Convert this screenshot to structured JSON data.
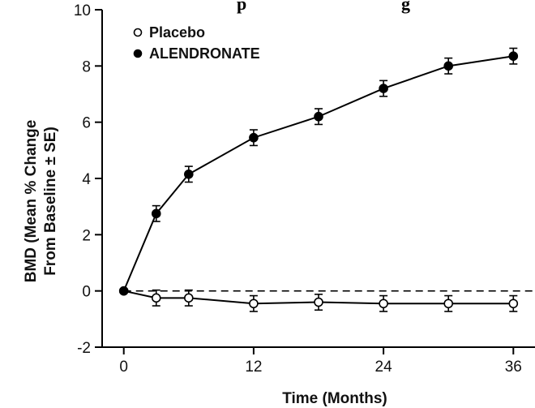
{
  "header": {
    "partial_title": "p",
    "partial_title_right": "g"
  },
  "chart_data": {
    "type": "line",
    "xlabel": "Time (Months)",
    "ylabel_line1": "BMD (Mean % Change",
    "ylabel_line2": "From Baseline ± SE)",
    "xlim": [
      -2,
      38
    ],
    "ylim": [
      -2,
      10
    ],
    "x_ticks": [
      0,
      12,
      24,
      36
    ],
    "y_ticks": [
      -2,
      0,
      2,
      4,
      6,
      8,
      10
    ],
    "x_tick_labels": [
      "0",
      "12",
      "24",
      "36"
    ],
    "y_tick_labels": [
      "-2",
      "0",
      "2",
      "4",
      "6",
      "8",
      "10"
    ],
    "reference_line": {
      "y": 0,
      "style": "dashed"
    },
    "legend": {
      "position": "top-left"
    },
    "series": [
      {
        "name": "Placebo",
        "marker": "open-circle",
        "color": "#000000",
        "x": [
          0,
          3,
          6,
          12,
          18,
          24,
          30,
          36
        ],
        "y": [
          0.0,
          -0.25,
          -0.25,
          -0.45,
          -0.4,
          -0.45,
          -0.45,
          -0.45
        ],
        "se": [
          0.0,
          0.28,
          0.28,
          0.28,
          0.28,
          0.28,
          0.28,
          0.28
        ]
      },
      {
        "name": "ALENDRONATE",
        "marker": "filled-circle",
        "color": "#000000",
        "x": [
          0,
          3,
          6,
          12,
          18,
          24,
          30,
          36
        ],
        "y": [
          0.0,
          2.75,
          4.15,
          5.45,
          6.2,
          7.2,
          8.0,
          8.35
        ],
        "se": [
          0.0,
          0.28,
          0.28,
          0.28,
          0.28,
          0.28,
          0.28,
          0.28
        ]
      }
    ]
  }
}
